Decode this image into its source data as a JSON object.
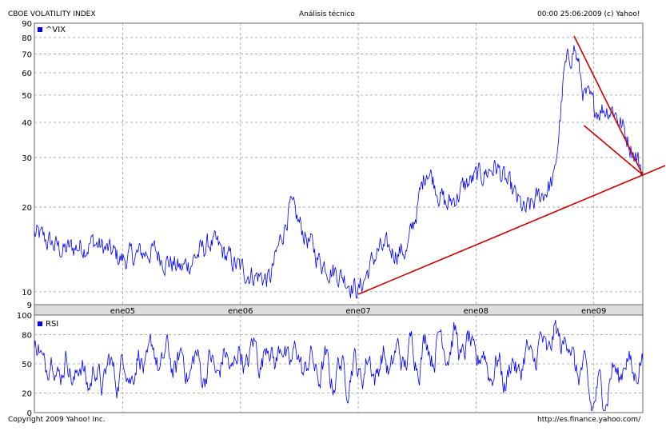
{
  "header": {
    "left": "CBOE VOLATILITY INDEX",
    "center": "Análisis técnico",
    "right": "00:00 25:06:2009 (c) Yahoo!"
  },
  "footer": {
    "left": "Copyright 2009 Yahoo! Inc.",
    "right": "http://es.finance.yahoo.com/"
  },
  "colors": {
    "series": "#0000ff",
    "trendline": "#cc0000",
    "grid": "#999999",
    "axis_band": "#dddddd"
  },
  "chart_data": [
    {
      "type": "line",
      "series_name": "^VIX",
      "yscale": "log",
      "ylim": [
        9,
        90
      ],
      "yticks": [
        "90",
        "80",
        "70",
        "60",
        "50",
        "40",
        "30",
        "20",
        "10",
        "9"
      ],
      "xticks": [
        "ene05",
        "ene06",
        "ene07",
        "ene08",
        "ene09"
      ],
      "xlim": [
        "2004-04",
        "2009-06"
      ],
      "grid": true,
      "series": [
        {
          "name": "^VIX",
          "x": [
            "2004-04",
            "2004-07",
            "2004-10",
            "2005-01",
            "2005-04",
            "2005-07",
            "2005-10",
            "2006-01",
            "2006-04",
            "2006-06",
            "2006-09",
            "2006-12",
            "2007-01",
            "2007-03",
            "2007-06",
            "2007-08",
            "2007-10",
            "2007-12",
            "2008-03",
            "2008-06",
            "2008-09",
            "2008-10",
            "2008-11",
            "2008-12",
            "2009-01",
            "2009-03",
            "2009-05",
            "2009-06"
          ],
          "values": [
            16,
            14,
            15,
            13,
            14,
            12,
            15,
            12,
            11,
            20,
            13,
            11,
            10,
            14,
            14,
            28,
            20,
            24,
            28,
            19,
            25,
            60,
            75,
            50,
            45,
            45,
            32,
            27
          ]
        }
      ],
      "annotations": [
        {
          "label": "rising support trendline",
          "from": [
            "2007-01",
            9.8
          ],
          "to": [
            "2009-06",
            26
          ]
        },
        {
          "label": "falling wedge upper line",
          "from": [
            "2008-11",
            81
          ],
          "to": [
            "2009-06",
            26
          ]
        },
        {
          "label": "falling wedge lower line",
          "from": [
            "2008-12",
            39
          ],
          "to": [
            "2009-06",
            26
          ]
        }
      ]
    },
    {
      "type": "line",
      "series_name": "RSI",
      "ylim": [
        0,
        100
      ],
      "yticks": [
        "100",
        "80",
        "50",
        "20",
        "0"
      ],
      "reference_lines": [
        80,
        50,
        20
      ],
      "grid": true,
      "series": [
        {
          "name": "RSI",
          "x": [
            "2004-04",
            "2004-10",
            "2005-04",
            "2005-10",
            "2006-04",
            "2006-10",
            "2007-04",
            "2007-10",
            "2008-04",
            "2008-10",
            "2009-01",
            "2009-04",
            "2009-06"
          ],
          "values": [
            60,
            35,
            55,
            45,
            65,
            40,
            50,
            75,
            40,
            78,
            10,
            50,
            45
          ]
        }
      ]
    }
  ]
}
